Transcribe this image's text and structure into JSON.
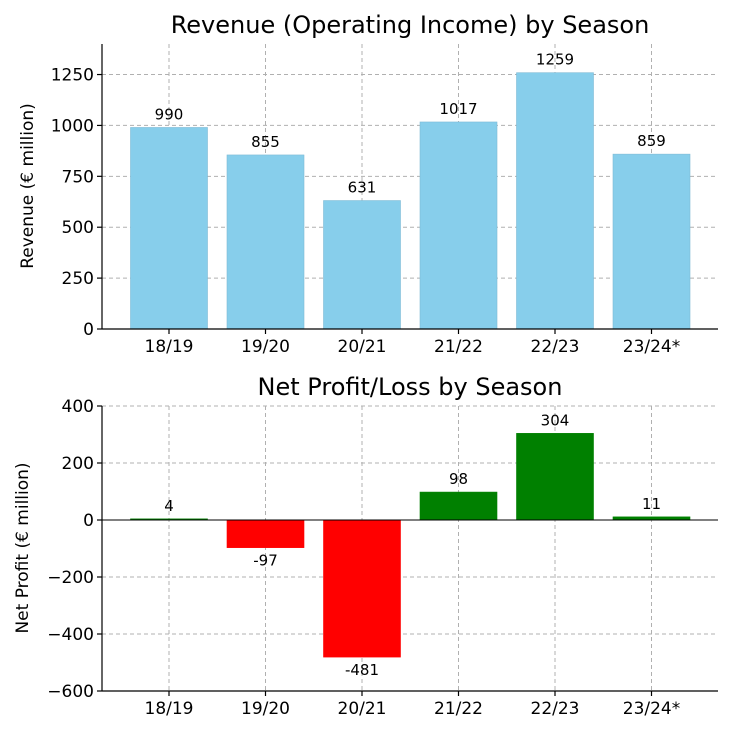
{
  "chart_data": [
    {
      "type": "bar",
      "title": "Revenue (Operating Income) by Season",
      "xlabel": "",
      "ylabel": "Revenue (€ million)",
      "categories": [
        "18/19",
        "19/20",
        "20/21",
        "21/22",
        "22/23",
        "23/24*"
      ],
      "values": [
        990,
        855,
        631,
        1017,
        1259,
        859
      ],
      "data_labels": [
        "990",
        "855",
        "631",
        "1017",
        "1259",
        "859"
      ],
      "ylim": [
        0,
        1400
      ],
      "yticks": [
        0,
        250,
        500,
        750,
        1000,
        1250
      ],
      "ytick_labels": [
        "0",
        "250",
        "500",
        "750",
        "1000",
        "1250"
      ],
      "bar_color": "#87ceeb",
      "bar_edge": "#7fbbd6",
      "grid": true
    },
    {
      "type": "bar",
      "title": "Net Profit/Loss by Season",
      "xlabel": "",
      "ylabel": "Net Profit (€ million)",
      "categories": [
        "18/19",
        "19/20",
        "20/21",
        "21/22",
        "22/23",
        "23/24*"
      ],
      "values": [
        4,
        -97,
        -481,
        98,
        304,
        11
      ],
      "data_labels": [
        "4",
        "-97",
        "-481",
        "98",
        "304",
        "11"
      ],
      "ylim": [
        -600,
        400
      ],
      "yticks": [
        -600,
        -400,
        -200,
        0,
        200,
        400
      ],
      "ytick_labels": [
        "−600",
        "−400",
        "−200",
        "0",
        "200",
        "400"
      ],
      "positive_color": "#008000",
      "negative_color": "#ff0000",
      "grid": true
    }
  ]
}
